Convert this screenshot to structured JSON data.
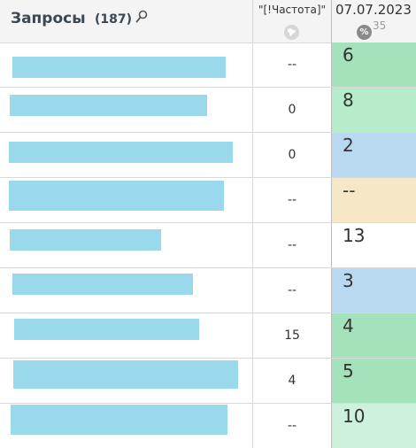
{
  "header": {
    "queries_title": "Запросы",
    "queries_count": "(187)",
    "freq_label": "\"[!Частота]\"",
    "date": "07.07.2023",
    "pct_icon": "%",
    "date_num": "35"
  },
  "rows": [
    {
      "freq": "--",
      "val": "6",
      "color": "#a4e2bb"
    },
    {
      "freq": "0",
      "val": "8",
      "color": "#b6ecc9"
    },
    {
      "freq": "0",
      "val": "2",
      "color": "#b8d9ef"
    },
    {
      "freq": "--",
      "val": "--",
      "color": "#f6e7c6"
    },
    {
      "freq": "--",
      "val": "13",
      "color": "#ffffff"
    },
    {
      "freq": "--",
      "val": "3",
      "color": "#b8d9ef"
    },
    {
      "freq": "15",
      "val": "4",
      "color": "#a4e2bb"
    },
    {
      "freq": "4",
      "val": "5",
      "color": "#a4e2bb"
    },
    {
      "freq": "--",
      "val": "10",
      "color": "#cdf1dc"
    }
  ],
  "icons": {
    "search": "search-icon",
    "globe": "globe-icon",
    "percent": "percent-icon"
  }
}
